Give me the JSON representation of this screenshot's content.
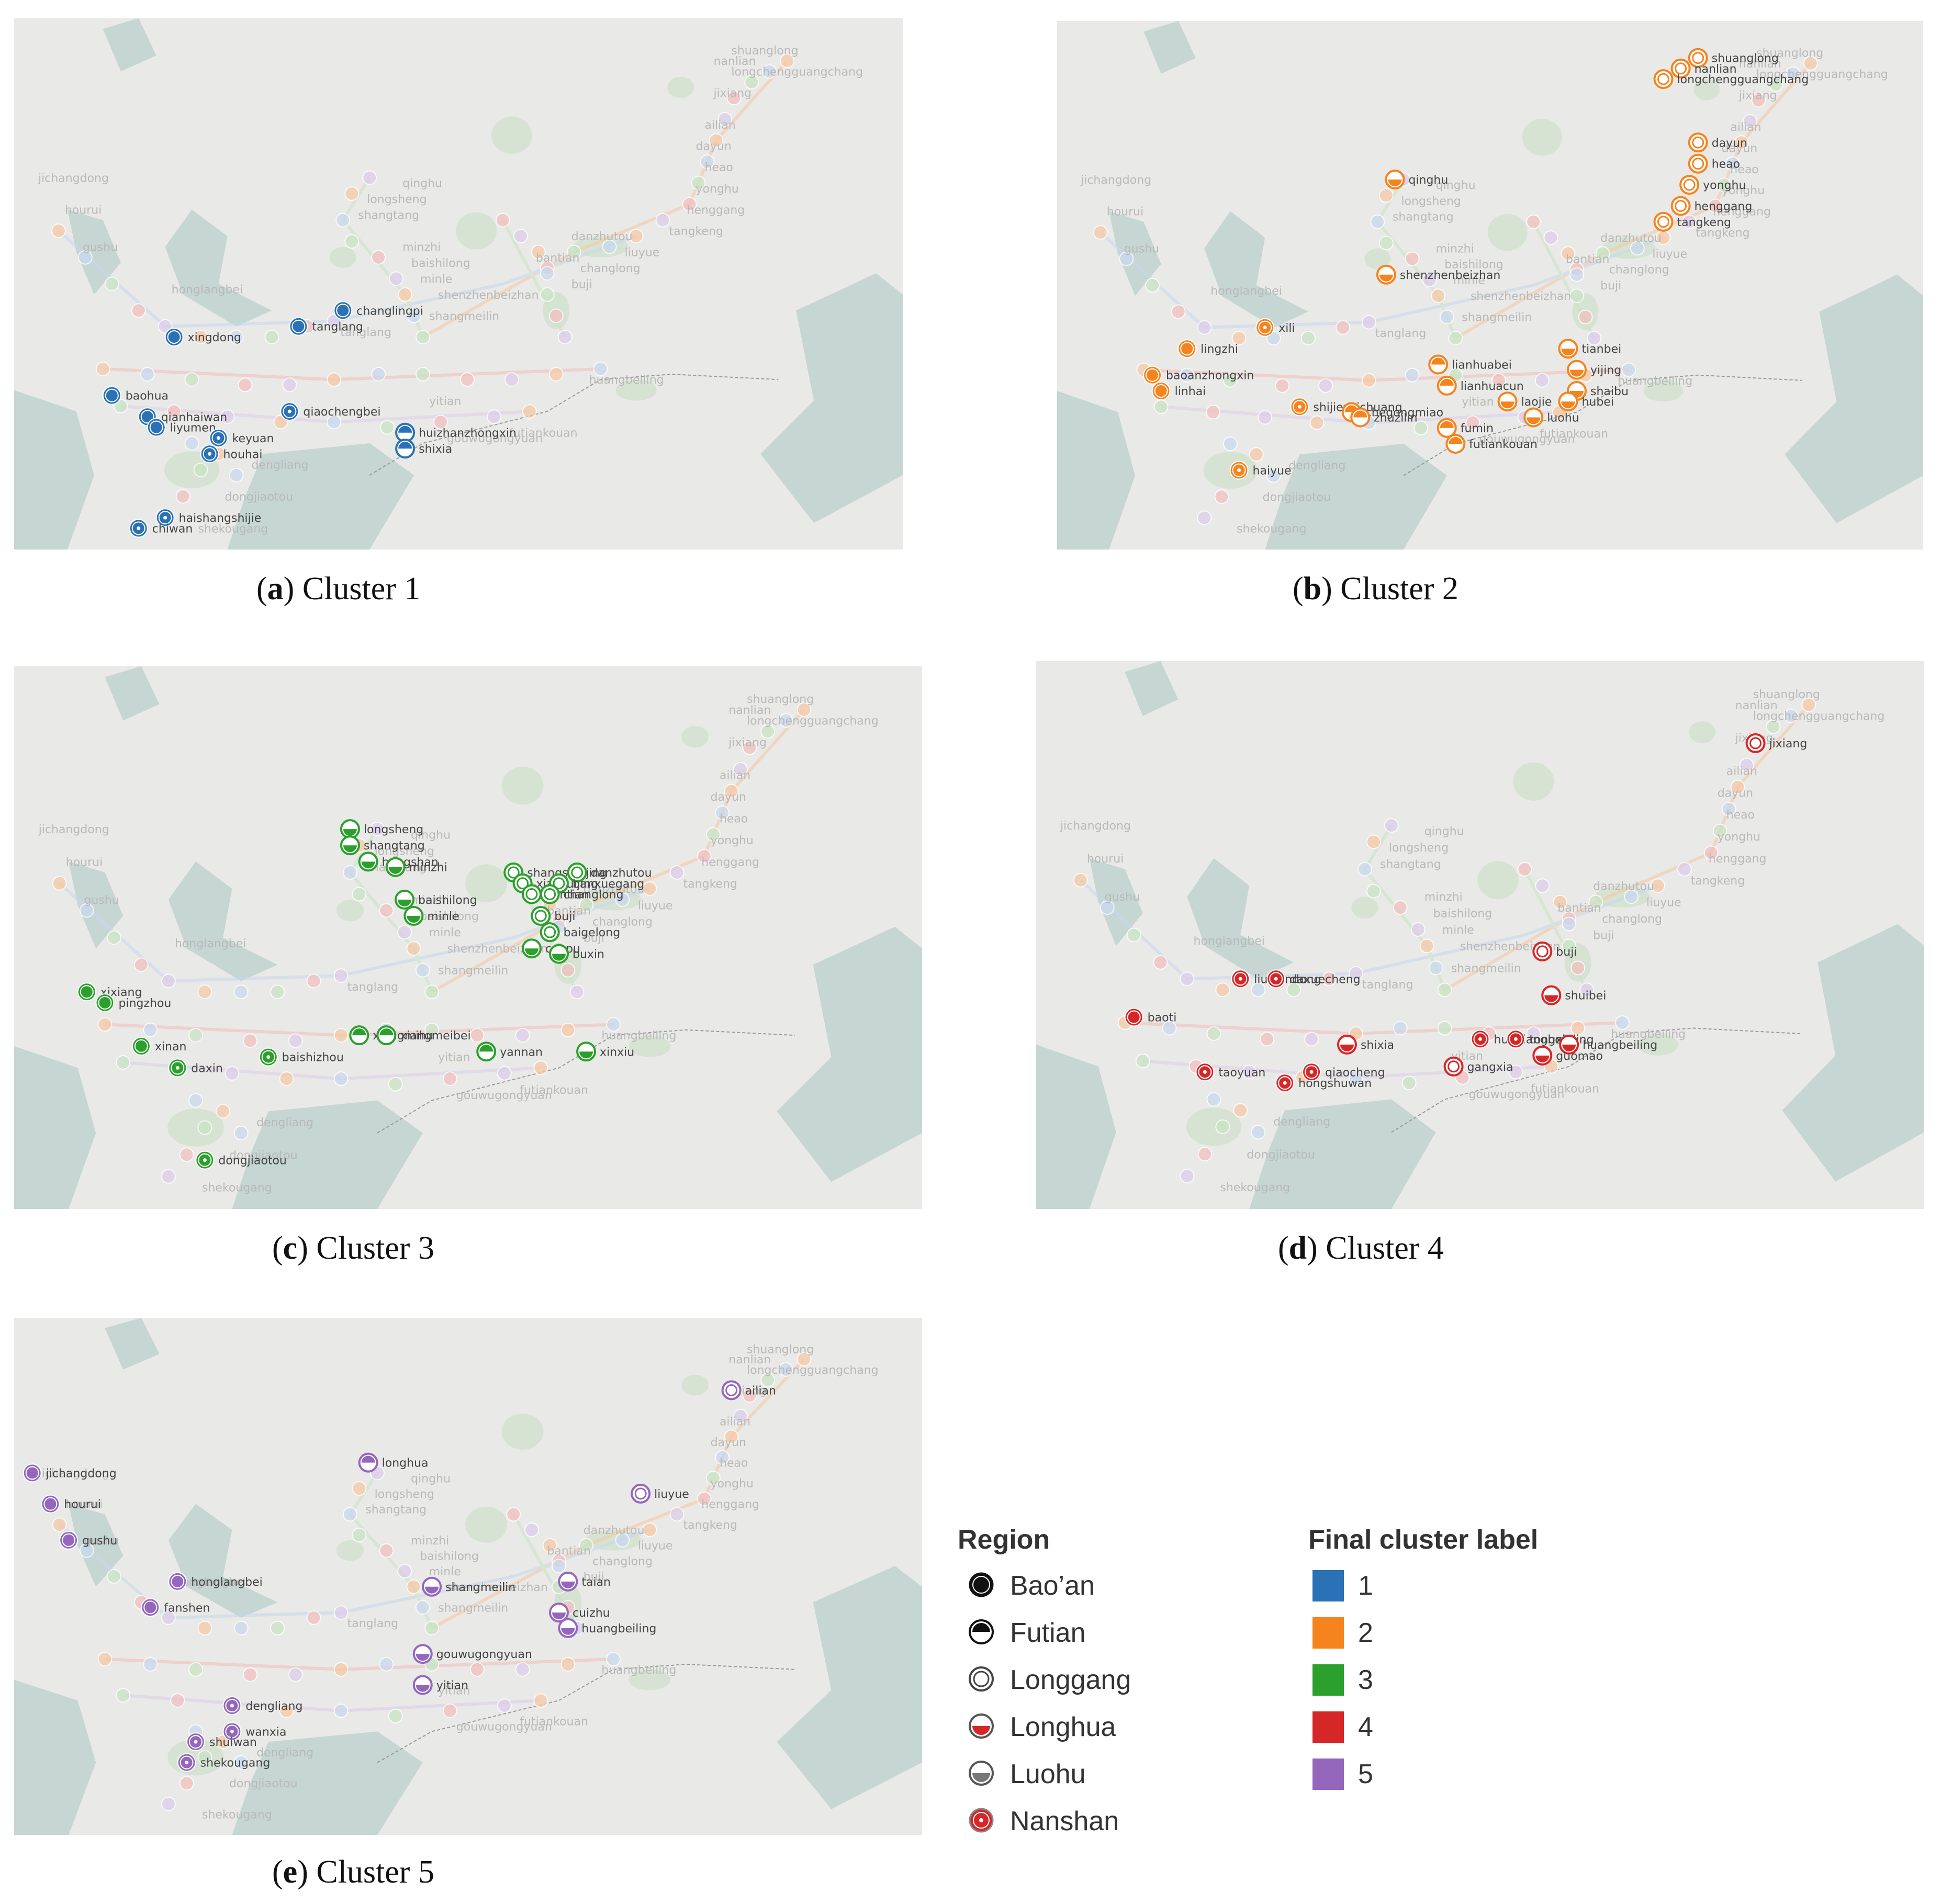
{
  "panels": [
    {
      "caption_letter": "a",
      "caption_text": "Cluster 1",
      "color": "#2a72b5",
      "stations": [
        {
          "name": "changlingpi",
          "region": "Bao'an"
        },
        {
          "name": "tanglang",
          "region": "Bao'an"
        },
        {
          "name": "xingdong",
          "region": "Bao'an"
        },
        {
          "name": "baohua",
          "region": "Bao'an"
        },
        {
          "name": "qianhaiwan",
          "region": "Bao'an"
        },
        {
          "name": "liyumen",
          "region": "Bao'an"
        },
        {
          "name": "keyuan",
          "region": "Nanshan"
        },
        {
          "name": "houhai",
          "region": "Nanshan"
        },
        {
          "name": "qiaochengbei",
          "region": "Nanshan"
        },
        {
          "name": "huizhanzhongxin",
          "region": "Futian"
        },
        {
          "name": "shixia",
          "region": "Futian"
        },
        {
          "name": "haishangshijie",
          "region": "Nanshan"
        },
        {
          "name": "chiwan",
          "region": "Nanshan"
        }
      ]
    },
    {
      "caption_letter": "b",
      "caption_text": "Cluster 2",
      "color": "#f5841f",
      "stations": [
        {
          "name": "shuanglong",
          "region": "Longgang"
        },
        {
          "name": "nanlian",
          "region": "Longgang"
        },
        {
          "name": "longchengguangchang",
          "region": "Longgang"
        },
        {
          "name": "dayun",
          "region": "Longgang"
        },
        {
          "name": "heao",
          "region": "Longgang"
        },
        {
          "name": "yonghu",
          "region": "Longgang"
        },
        {
          "name": "henggang",
          "region": "Longgang"
        },
        {
          "name": "tangkeng",
          "region": "Longgang"
        },
        {
          "name": "qinghu",
          "region": "Longhua"
        },
        {
          "name": "shenzhenbeizhan",
          "region": "Longhua"
        },
        {
          "name": "xili",
          "region": "Nanshan"
        },
        {
          "name": "lingzhi",
          "region": "Bao'an"
        },
        {
          "name": "baoanzhongxin",
          "region": "Bao'an"
        },
        {
          "name": "linhai",
          "region": "Bao'an"
        },
        {
          "name": "tianbei",
          "region": "Luohu"
        },
        {
          "name": "yijing",
          "region": "Luohu"
        },
        {
          "name": "lianhuabei",
          "region": "Futian"
        },
        {
          "name": "lianhuacun",
          "region": "Futian"
        },
        {
          "name": "shaibu",
          "region": "Luohu"
        },
        {
          "name": "hubei",
          "region": "Luohu"
        },
        {
          "name": "laojie",
          "region": "Luohu"
        },
        {
          "name": "luohu",
          "region": "Luohu"
        },
        {
          "name": "shijiezhichuang",
          "region": "Nanshan"
        },
        {
          "name": "chegongmiao",
          "region": "Futian"
        },
        {
          "name": "zhuzilin",
          "region": "Futian"
        },
        {
          "name": "fumin",
          "region": "Futian"
        },
        {
          "name": "futiankouan",
          "region": "Futian"
        },
        {
          "name": "haiyue",
          "region": "Nanshan"
        }
      ]
    },
    {
      "caption_letter": "c",
      "caption_text": "Cluster 3",
      "color": "#2ca02c",
      "stations": [
        {
          "name": "longsheng",
          "region": "Longhua"
        },
        {
          "name": "shangtang",
          "region": "Longhua"
        },
        {
          "name": "hongshan",
          "region": "Longhua"
        },
        {
          "name": "minzhi",
          "region": "Longhua"
        },
        {
          "name": "baishilong",
          "region": "Longhua"
        },
        {
          "name": "minle",
          "region": "Longhua"
        },
        {
          "name": "shangshuijing",
          "region": "Longgang"
        },
        {
          "name": "xiashuijing",
          "region": "Longgang"
        },
        {
          "name": "bantian",
          "region": "Longgang"
        },
        {
          "name": "danzhutou",
          "region": "Longgang"
        },
        {
          "name": "banxuegang",
          "region": "Longgang"
        },
        {
          "name": "changlong",
          "region": "Longgang"
        },
        {
          "name": "buji",
          "region": "Longgang"
        },
        {
          "name": "baigelong",
          "region": "Longgang"
        },
        {
          "name": "caopu",
          "region": "Luohu"
        },
        {
          "name": "buxin",
          "region": "Luohu"
        },
        {
          "name": "xixiang",
          "region": "Bao'an"
        },
        {
          "name": "pingzhou",
          "region": "Bao'an"
        },
        {
          "name": "xinan",
          "region": "Bao'an"
        },
        {
          "name": "daxin",
          "region": "Nanshan"
        },
        {
          "name": "baishizhou",
          "region": "Nanshan"
        },
        {
          "name": "xiangmihu",
          "region": "Futian"
        },
        {
          "name": "xiangmeibei",
          "region": "Futian"
        },
        {
          "name": "yannan",
          "region": "Futian"
        },
        {
          "name": "xinxiu",
          "region": "Luohu"
        },
        {
          "name": "dongjiaotou",
          "region": "Nanshan"
        }
      ]
    },
    {
      "caption_letter": "d",
      "caption_text": "Cluster 4",
      "color": "#d62728",
      "stations": [
        {
          "name": "jixiang",
          "region": "Longgang"
        },
        {
          "name": "buji",
          "region": "Longgang"
        },
        {
          "name": "shuibei",
          "region": "Longhua"
        },
        {
          "name": "liuxiandong",
          "region": "Nanshan"
        },
        {
          "name": "daxuecheng",
          "region": "Nanshan"
        },
        {
          "name": "baoti",
          "region": "Bao'an"
        },
        {
          "name": "taoyuan",
          "region": "Nanshan"
        },
        {
          "name": "hongshuwan",
          "region": "Nanshan"
        },
        {
          "name": "qiaocheng",
          "region": "Nanshan"
        },
        {
          "name": "shixia",
          "region": "Longhua"
        },
        {
          "name": "huaqiangbei",
          "region": "Nanshan"
        },
        {
          "name": "tongxinling",
          "region": "Nanshan"
        },
        {
          "name": "huangbeiling",
          "region": "Luohu"
        },
        {
          "name": "guomao",
          "region": "Luohu"
        },
        {
          "name": "gangxia",
          "region": "Longgang"
        }
      ]
    },
    {
      "caption_letter": "e",
      "caption_text": "Cluster 5",
      "color": "#9467bd",
      "stations": [
        {
          "name": "ailian",
          "region": "Longgang"
        },
        {
          "name": "longhua",
          "region": "Futian"
        },
        {
          "name": "liuyue",
          "region": "Longgang"
        },
        {
          "name": "jichangdong",
          "region": "Bao'an"
        },
        {
          "name": "hourui",
          "region": "Bao'an"
        },
        {
          "name": "gushu",
          "region": "Bao'an"
        },
        {
          "name": "honglangbei",
          "region": "Bao'an"
        },
        {
          "name": "fanshen",
          "region": "Bao'an"
        },
        {
          "name": "shangmeilin",
          "region": "Longhua"
        },
        {
          "name": "taian",
          "region": "Luohu"
        },
        {
          "name": "cuizhu",
          "region": "Luohu"
        },
        {
          "name": "huangbeiling",
          "region": "Longhua"
        },
        {
          "name": "gouwugongyuan",
          "region": "Luohu"
        },
        {
          "name": "yitian",
          "region": "Longhua"
        },
        {
          "name": "dengliang",
          "region": "Nanshan"
        },
        {
          "name": "wanxia",
          "region": "Nanshan"
        },
        {
          "name": "shuiwan",
          "region": "Nanshan"
        },
        {
          "name": "shekougang",
          "region": "Nanshan"
        }
      ]
    }
  ],
  "legend": {
    "region_title": "Region",
    "regions": [
      {
        "name": "Bao’an",
        "style": "baoan"
      },
      {
        "name": "Futian",
        "style": "futian"
      },
      {
        "name": "Longgang",
        "style": "longgang"
      },
      {
        "name": "Longhua",
        "style": "longhua"
      },
      {
        "name": "Luohu",
        "style": "luohu"
      },
      {
        "name": "Nanshan",
        "style": "nanshan"
      }
    ],
    "cluster_title": "Final cluster label",
    "clusters": [
      {
        "label": "1",
        "color": "#2a72b5"
      },
      {
        "label": "2",
        "color": "#f5841f"
      },
      {
        "label": "3",
        "color": "#2ca02c"
      },
      {
        "label": "4",
        "color": "#d62728"
      },
      {
        "label": "5",
        "color": "#9467bd"
      }
    ]
  },
  "background_labels": [
    "shuanglong",
    "nanlian",
    "longchengguangchang",
    "jixiang",
    "ailian",
    "dayun",
    "heao",
    "yonghu",
    "henggang",
    "tangkeng",
    "liuyue",
    "qinghu",
    "longsheng",
    "shangtang",
    "minzhi",
    "baishilong",
    "minle",
    "shenzhenbeizhan",
    "bantian",
    "danzhutou",
    "changlong",
    "buji",
    "tanglang",
    "shangmeilin",
    "jichangdong",
    "hourui",
    "gushu",
    "honglangbei",
    "huangbeiling",
    "yitian",
    "dongjiaotou",
    "dengliang",
    "gouwugongyuan",
    "futiankouan",
    "shekougang"
  ]
}
